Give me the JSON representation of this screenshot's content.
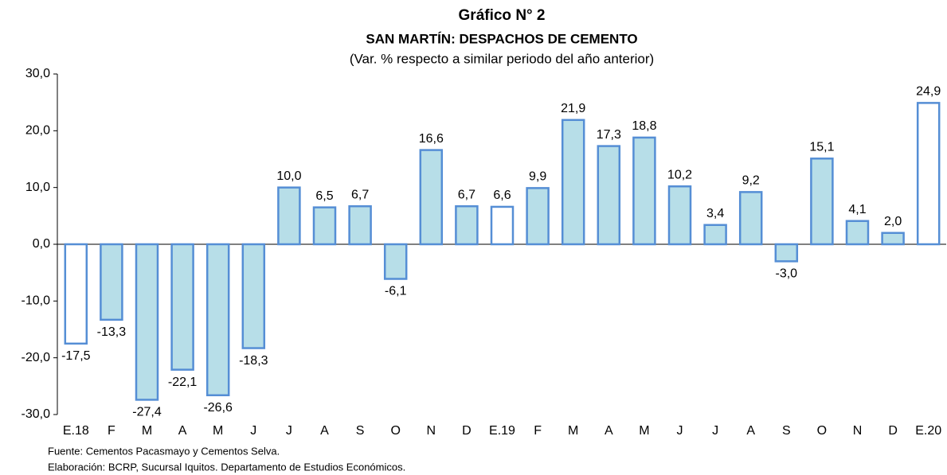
{
  "chart_data": {
    "type": "bar",
    "title": "Gráfico N° 2",
    "subtitle": "SAN MARTÍN: DESPACHOS DE CEMENTO",
    "subtitle2": "(Var. % respecto a similar periodo del año anterior)",
    "categories": [
      "E.18",
      "F",
      "M",
      "A",
      "M",
      "J",
      "J",
      "A",
      "S",
      "O",
      "N",
      "D",
      "E.19",
      "F",
      "M",
      "A",
      "M",
      "J",
      "J",
      "A",
      "S",
      "O",
      "N",
      "D",
      "E.20"
    ],
    "values": [
      -17.5,
      -13.3,
      -27.4,
      -22.1,
      -26.6,
      -18.3,
      10.0,
      6.5,
      6.7,
      -6.1,
      16.6,
      6.7,
      6.6,
      9.9,
      21.9,
      17.3,
      18.8,
      10.2,
      3.4,
      9.2,
      -3.0,
      15.1,
      4.1,
      2.0,
      24.9
    ],
    "value_labels": [
      "-17,5",
      "-13,3",
      "-27,4",
      "-22,1",
      "-26,6",
      "-18,3",
      "10,0",
      "6,5",
      "6,7",
      "-6,1",
      "16,6",
      "6,7",
      "6,6",
      "9,9",
      "21,9",
      "17,3",
      "18,8",
      "10,2",
      "3,4",
      "9,2",
      "-3,0",
      "15,1",
      "4,1",
      "2,0",
      "24,9"
    ],
    "colors": [
      "#ffffff",
      "#b7dee8",
      "#b7dee8",
      "#b7dee8",
      "#b7dee8",
      "#b7dee8",
      "#b7dee8",
      "#b7dee8",
      "#b7dee8",
      "#b7dee8",
      "#b7dee8",
      "#b7dee8",
      "#ffffff",
      "#b7dee8",
      "#b7dee8",
      "#b7dee8",
      "#b7dee8",
      "#b7dee8",
      "#b7dee8",
      "#b7dee8",
      "#b7dee8",
      "#b7dee8",
      "#b7dee8",
      "#b7dee8",
      "#ffffff"
    ],
    "edge_color": "#558ed5",
    "ylim": [
      -30,
      30
    ],
    "yticks": [
      {
        "value": -30,
        "label": "-30,0"
      },
      {
        "value": -20,
        "label": "-20,0"
      },
      {
        "value": -10,
        "label": "-10,0"
      },
      {
        "value": 0,
        "label": "0,0"
      },
      {
        "value": 10,
        "label": "10,0"
      },
      {
        "value": 20,
        "label": "20,0"
      },
      {
        "value": 30,
        "label": "30,0"
      }
    ],
    "grid": false,
    "notes": [
      "Fuente: Cementos Pacasmayo y Cementos Selva.",
      "Elaboración: BCRP, Sucursal Iquitos. Departamento de Estudios Económicos."
    ]
  }
}
